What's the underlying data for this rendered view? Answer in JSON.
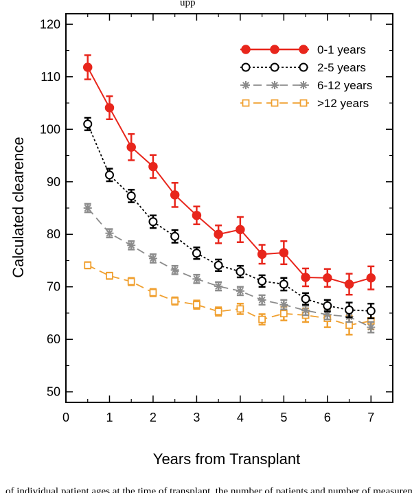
{
  "top_caption": "upp",
  "bottom_caption": "of individual patient ages at the time of transplant, the number of patients and number of measurements within each age group",
  "chart_data": {
    "type": "line",
    "title": "",
    "xlabel": "Years from Transplant",
    "ylabel": "Calculated clearence",
    "xlim": [
      0,
      7.5
    ],
    "ylim": [
      48,
      122
    ],
    "xticks": [
      0,
      1,
      2,
      3,
      4,
      5,
      6,
      7
    ],
    "yticks": [
      50,
      60,
      70,
      80,
      90,
      100,
      110,
      120
    ],
    "grid": false,
    "legend_position": "top-right",
    "x": [
      0.5,
      1,
      1.5,
      2,
      2.5,
      3,
      3.5,
      4,
      4.5,
      5,
      5.5,
      6,
      6.5,
      7
    ],
    "series": [
      {
        "name": "0-1 years",
        "color": "#e8261c",
        "line": "solid",
        "marker": "filled-circle",
        "values": [
          111.8,
          104.1,
          96.6,
          92.9,
          87.5,
          83.6,
          80.0,
          80.9,
          76.2,
          76.5,
          71.8,
          71.7,
          70.5,
          71.7
        ],
        "err": [
          2.3,
          2.2,
          2.5,
          2.2,
          2.3,
          1.7,
          1.7,
          2.4,
          1.8,
          2.2,
          1.7,
          1.7,
          2.0,
          2.2
        ]
      },
      {
        "name": "2-5 years",
        "color": "#000000",
        "line": "dotted",
        "marker": "open-circle",
        "values": [
          101.0,
          91.3,
          87.3,
          82.4,
          79.6,
          76.4,
          74.1,
          72.9,
          71.1,
          70.5,
          67.7,
          66.4,
          65.6,
          65.4
        ],
        "err": [
          1.2,
          1.2,
          1.2,
          1.2,
          1.2,
          1.1,
          1.1,
          1.1,
          1.1,
          1.2,
          1.1,
          1.1,
          1.4,
          1.4
        ]
      },
      {
        "name": "6-12 years",
        "color": "#8c8c8c",
        "line": "dashed",
        "marker": "asterisk",
        "values": [
          85.0,
          80.2,
          77.9,
          75.4,
          73.2,
          71.5,
          70.1,
          69.2,
          67.5,
          66.6,
          65.5,
          64.7,
          64.3,
          62.3
        ],
        "err": [
          0.8,
          0.8,
          0.8,
          0.8,
          0.8,
          0.8,
          0.8,
          0.8,
          0.9,
          0.9,
          0.9,
          0.9,
          1.0,
          1.0
        ]
      },
      {
        "name": ">12 years",
        "color": "#f0a030",
        "line": "dashed",
        "marker": "open-square",
        "values": [
          74.1,
          72.1,
          71.0,
          68.9,
          67.3,
          66.6,
          65.3,
          65.8,
          63.8,
          64.9,
          64.6,
          64.0,
          62.7,
          63.5
        ],
        "err": [
          0.6,
          0.6,
          0.7,
          0.7,
          0.7,
          0.8,
          0.8,
          1.0,
          1.0,
          1.3,
          1.3,
          1.7,
          1.8,
          1.6
        ]
      }
    ]
  }
}
